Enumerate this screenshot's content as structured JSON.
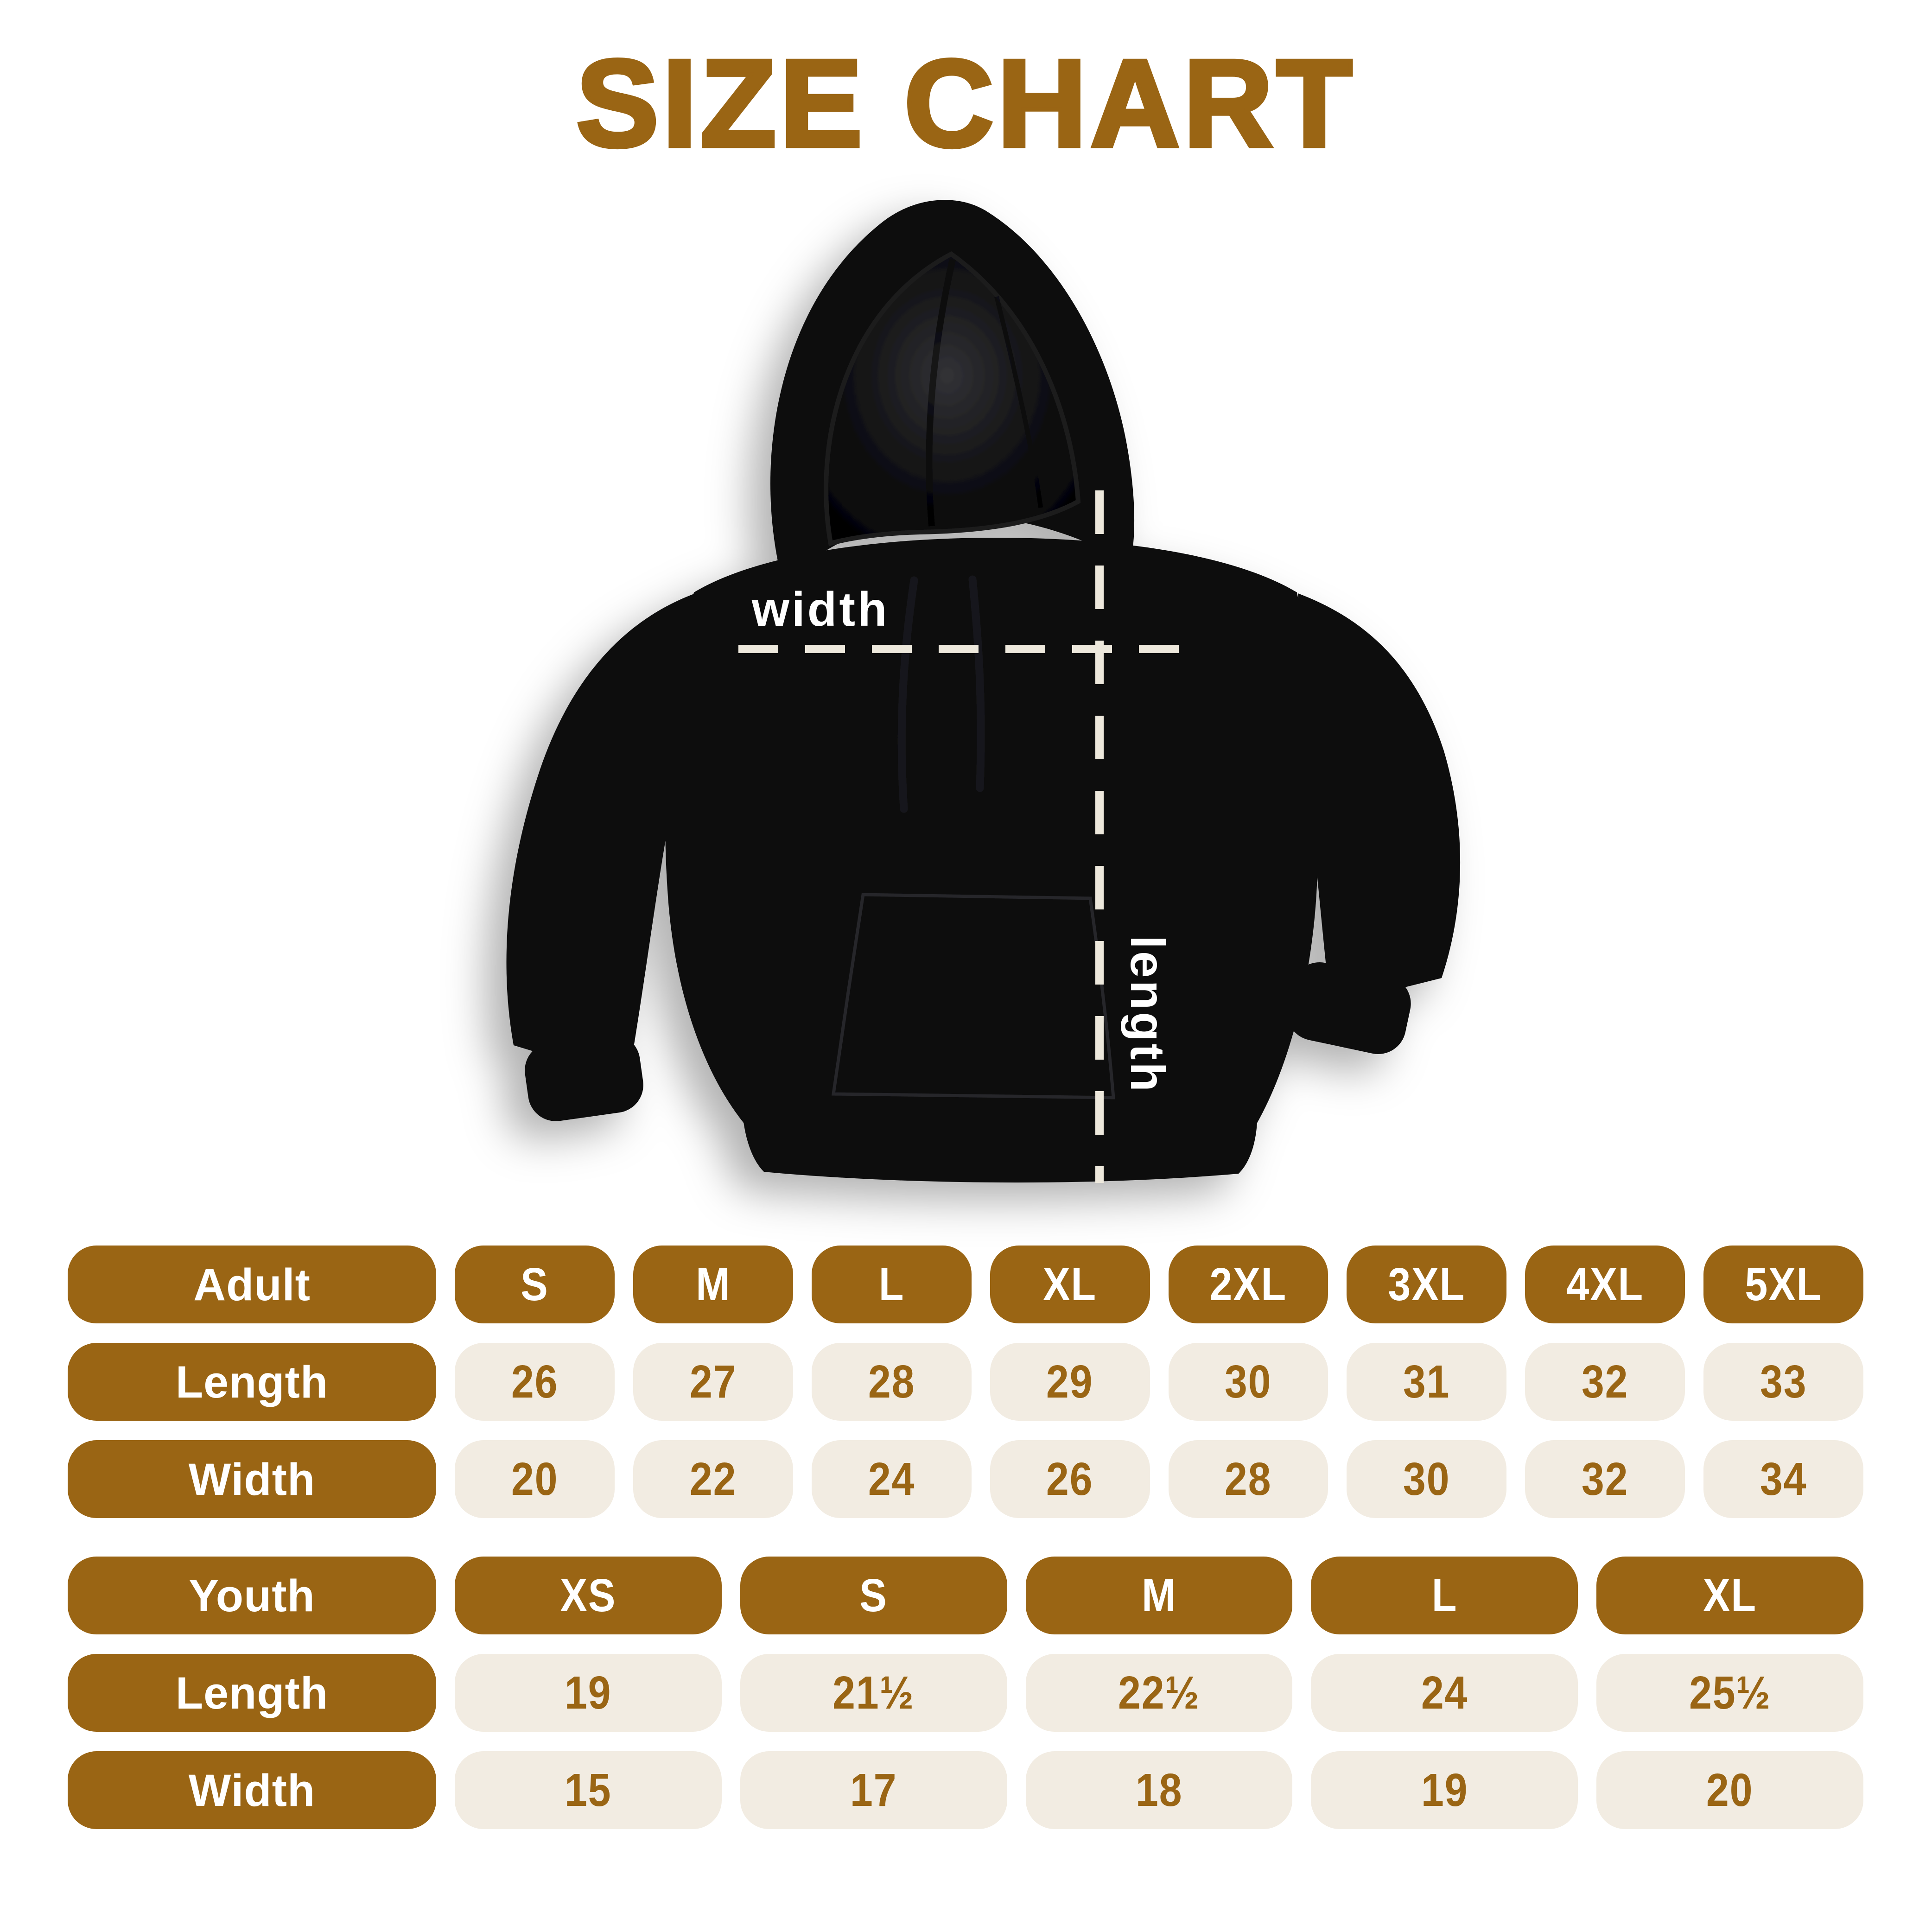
{
  "title": "SIZE CHART",
  "hoodie": {
    "width_label": "width",
    "length_label": "length"
  },
  "colors": {
    "brown": "#9A6514",
    "beige": "#F2ECE2",
    "label_text": "#FFFFFF",
    "background": "#FFFFFF",
    "dash": "#EDE8DC"
  },
  "chart_data": [
    {
      "type": "table",
      "name": "adult",
      "title": "Adult",
      "columns": [
        "Adult",
        "S",
        "M",
        "L",
        "XL",
        "2XL",
        "3XL",
        "4XL",
        "5XL"
      ],
      "rows": [
        [
          "Length",
          "26",
          "27",
          "28",
          "29",
          "30",
          "31",
          "32",
          "33"
        ],
        [
          "Width",
          "20",
          "22",
          "24",
          "26",
          "28",
          "30",
          "32",
          "34"
        ]
      ]
    },
    {
      "type": "table",
      "name": "youth",
      "title": "Youth",
      "columns": [
        "Youth",
        "XS",
        "S",
        "M",
        "L",
        "XL"
      ],
      "rows": [
        [
          "Length",
          "19",
          "21½",
          "22½",
          "24",
          "25½"
        ],
        [
          "Width",
          "15",
          "17",
          "18",
          "19",
          "20"
        ]
      ]
    }
  ]
}
